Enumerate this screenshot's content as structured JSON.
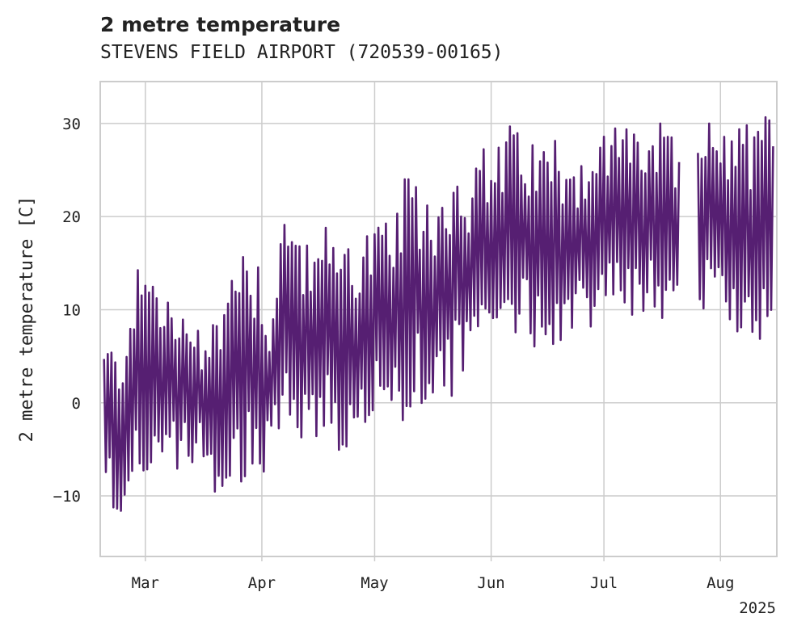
{
  "chart_data": {
    "type": "line",
    "title": "2 metre temperature",
    "subtitle": "STEVENS FIELD AIRPORT (720539-00165)",
    "ylabel": "2 metre temperature [C]",
    "xlabel": "",
    "x_tick_labels": [
      "Mar",
      "Apr",
      "May",
      "Jun",
      "Jul",
      "Aug"
    ],
    "x_offset_label": "2025",
    "y_ticks": [
      -10,
      0,
      10,
      20,
      30
    ],
    "ylim": [
      -16.5,
      34.5
    ],
    "xlim": [
      "2025-02-17",
      "2025-08-16"
    ],
    "grid": true,
    "color": "#561f72",
    "gap": [
      "2025-07-21",
      "2025-07-26"
    ],
    "series": [
      {
        "x": [
          "2025-02-18",
          "2025-02-22",
          "2025-02-26",
          "2025-03-02",
          "2025-03-06",
          "2025-03-10",
          "2025-03-14",
          "2025-03-18",
          "2025-03-22",
          "2025-03-26",
          "2025-03-30",
          "2025-04-03",
          "2025-04-07",
          "2025-04-11",
          "2025-04-15",
          "2025-04-19",
          "2025-04-23",
          "2025-04-27",
          "2025-05-01",
          "2025-05-05",
          "2025-05-09",
          "2025-05-13",
          "2025-05-17",
          "2025-05-21",
          "2025-05-25",
          "2025-05-29",
          "2025-06-02",
          "2025-06-06",
          "2025-06-10",
          "2025-06-14",
          "2025-06-18",
          "2025-06-22",
          "2025-06-26",
          "2025-06-30",
          "2025-07-04",
          "2025-07-08",
          "2025-07-12",
          "2025-07-16",
          "2025-07-20",
          "2025-07-27",
          "2025-07-31",
          "2025-08-04",
          "2025-08-08",
          "2025-08-12",
          "2025-08-15"
        ],
        "high": [
          7,
          6,
          14,
          16,
          13,
          9,
          10,
          9,
          12,
          20,
          18,
          10,
          22,
          20,
          16,
          20,
          19,
          19,
          20,
          19,
          24,
          24,
          22,
          26,
          26,
          27,
          28,
          30,
          30,
          28,
          29,
          28,
          27,
          29,
          30,
          32,
          30,
          30,
          28,
          30,
          30,
          30,
          31,
          31,
          30
        ],
        "low": [
          -10,
          -14,
          -7,
          -9,
          -6,
          -9,
          -6,
          -12,
          -12,
          -9,
          -10,
          -6,
          -4,
          -4,
          -5,
          -5,
          -7,
          -5,
          -4,
          -2,
          -4,
          0,
          0,
          0,
          2,
          4,
          5,
          6,
          6,
          6,
          6,
          8,
          8,
          8,
          9,
          9,
          9,
          9,
          10,
          10,
          8,
          8,
          6,
          7,
          9
        ]
      }
    ]
  }
}
